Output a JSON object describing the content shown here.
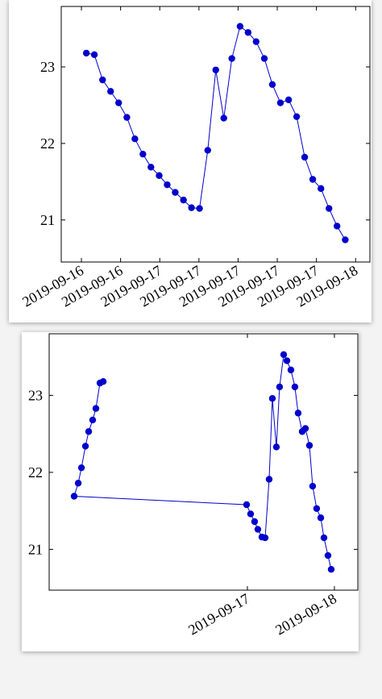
{
  "chart_data": [
    {
      "type": "line",
      "x": [
        16.625,
        16.666,
        16.708,
        16.749,
        16.79,
        16.832,
        16.873,
        16.914,
        16.955,
        16.997,
        17.038,
        17.079,
        17.121,
        17.162,
        17.203,
        17.245,
        17.286,
        17.327,
        17.368,
        17.41,
        17.451,
        17.492,
        17.534,
        17.575,
        17.616,
        17.658,
        17.699,
        17.74,
        17.781,
        17.823,
        17.864,
        17.905,
        17.947
      ],
      "series": [
        {
          "color": "#0000cc",
          "values": [
            23.18,
            23.16,
            22.83,
            22.68,
            22.53,
            22.34,
            22.06,
            21.86,
            21.69,
            21.58,
            21.46,
            21.36,
            21.26,
            21.16,
            21.15,
            21.91,
            22.96,
            22.33,
            23.11,
            23.53,
            23.45,
            23.33,
            23.11,
            22.77,
            22.53,
            22.57,
            22.35,
            21.82,
            21.53,
            21.41,
            21.15,
            20.92,
            20.74
          ]
        }
      ],
      "xlim": [
        16.497,
        18.073
      ],
      "xticks": [
        {
          "value": 16.6,
          "label": "2019-09-16"
        },
        {
          "value": 16.8,
          "label": "2019-09-16"
        },
        {
          "value": 17.0,
          "label": "2019-09-17"
        },
        {
          "value": 17.2,
          "label": "2019-09-17"
        },
        {
          "value": 17.4,
          "label": "2019-09-17"
        },
        {
          "value": 17.6,
          "label": "2019-09-17"
        },
        {
          "value": 17.8,
          "label": "2019-09-17"
        },
        {
          "value": 18.0,
          "label": "2019-09-18"
        }
      ],
      "ylim": [
        20.45,
        23.79
      ],
      "yticks": [
        21,
        22,
        23
      ]
    },
    {
      "type": "line",
      "x": [
        15.343,
        15.306,
        15.259,
        15.222,
        15.176,
        15.139,
        15.093,
        15.056,
        15.009,
        16.991,
        17.037,
        17.083,
        17.12,
        17.167,
        17.204,
        17.25,
        17.287,
        17.333,
        17.37,
        17.417,
        17.454,
        17.5,
        17.546,
        17.583,
        17.63,
        17.667,
        17.713,
        17.75,
        17.796,
        17.843,
        17.88,
        17.926,
        17.963
      ],
      "series": [
        {
          "color": "#0000cc",
          "values": [
            23.18,
            23.16,
            22.83,
            22.68,
            22.53,
            22.34,
            22.06,
            21.86,
            21.69,
            21.58,
            21.46,
            21.36,
            21.26,
            21.16,
            21.15,
            21.91,
            22.96,
            22.33,
            23.11,
            23.53,
            23.45,
            23.33,
            23.11,
            22.77,
            22.53,
            22.57,
            22.35,
            21.82,
            21.53,
            21.41,
            21.15,
            20.92,
            20.74
          ]
        }
      ],
      "xlim": [
        14.722,
        18.269
      ],
      "xticks": [
        {
          "value": 17,
          "label": "2019-09-17"
        },
        {
          "value": 18,
          "label": "2019-09-18"
        }
      ],
      "ylim": [
        20.47,
        23.8
      ],
      "yticks": [
        21,
        22,
        23
      ]
    }
  ]
}
